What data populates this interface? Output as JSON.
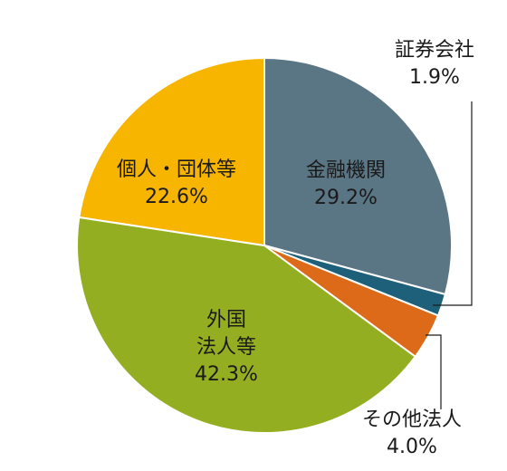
{
  "chart_data": {
    "type": "pie",
    "title": "",
    "unit": "%",
    "slices": [
      {
        "name": "金融機関",
        "value": 29.2,
        "value_label": "29.2%",
        "color": "#5a7584",
        "label_position": "inside"
      },
      {
        "name": "証券会社",
        "value": 1.9,
        "value_label": "1.9%",
        "color": "#1e5f7a",
        "label_position": "outside-top-right"
      },
      {
        "name": "その他法人",
        "value": 4.0,
        "value_label": "4.0%",
        "color": "#dd6a18",
        "label_position": "outside-bottom-right"
      },
      {
        "name": "外国\n法人等",
        "value": 42.3,
        "value_label": "42.3%",
        "color": "#94ae22",
        "label_position": "inside"
      },
      {
        "name": "個人・団体等",
        "value": 22.6,
        "value_label": "22.6%",
        "color": "#f7b500",
        "label_position": "inside"
      }
    ],
    "start_angle_deg": 0,
    "direction": "clockwise",
    "legend": "none"
  }
}
